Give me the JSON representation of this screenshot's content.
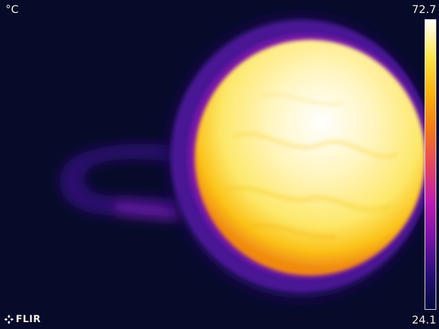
{
  "overlay": {
    "unit": "°C",
    "max_temp": "72.7",
    "min_temp": "24.1",
    "brand": "FLIR"
  },
  "palette": {
    "background": "#070b2a",
    "stops": [
      "#000a3c",
      "#2a0f7a",
      "#7a12a8",
      "#c21bb0",
      "#e8465e",
      "#f57a12",
      "#fbb40c",
      "#fde74a",
      "#ffffff"
    ]
  },
  "icons": {
    "logo": "flir-logo-icon"
  }
}
